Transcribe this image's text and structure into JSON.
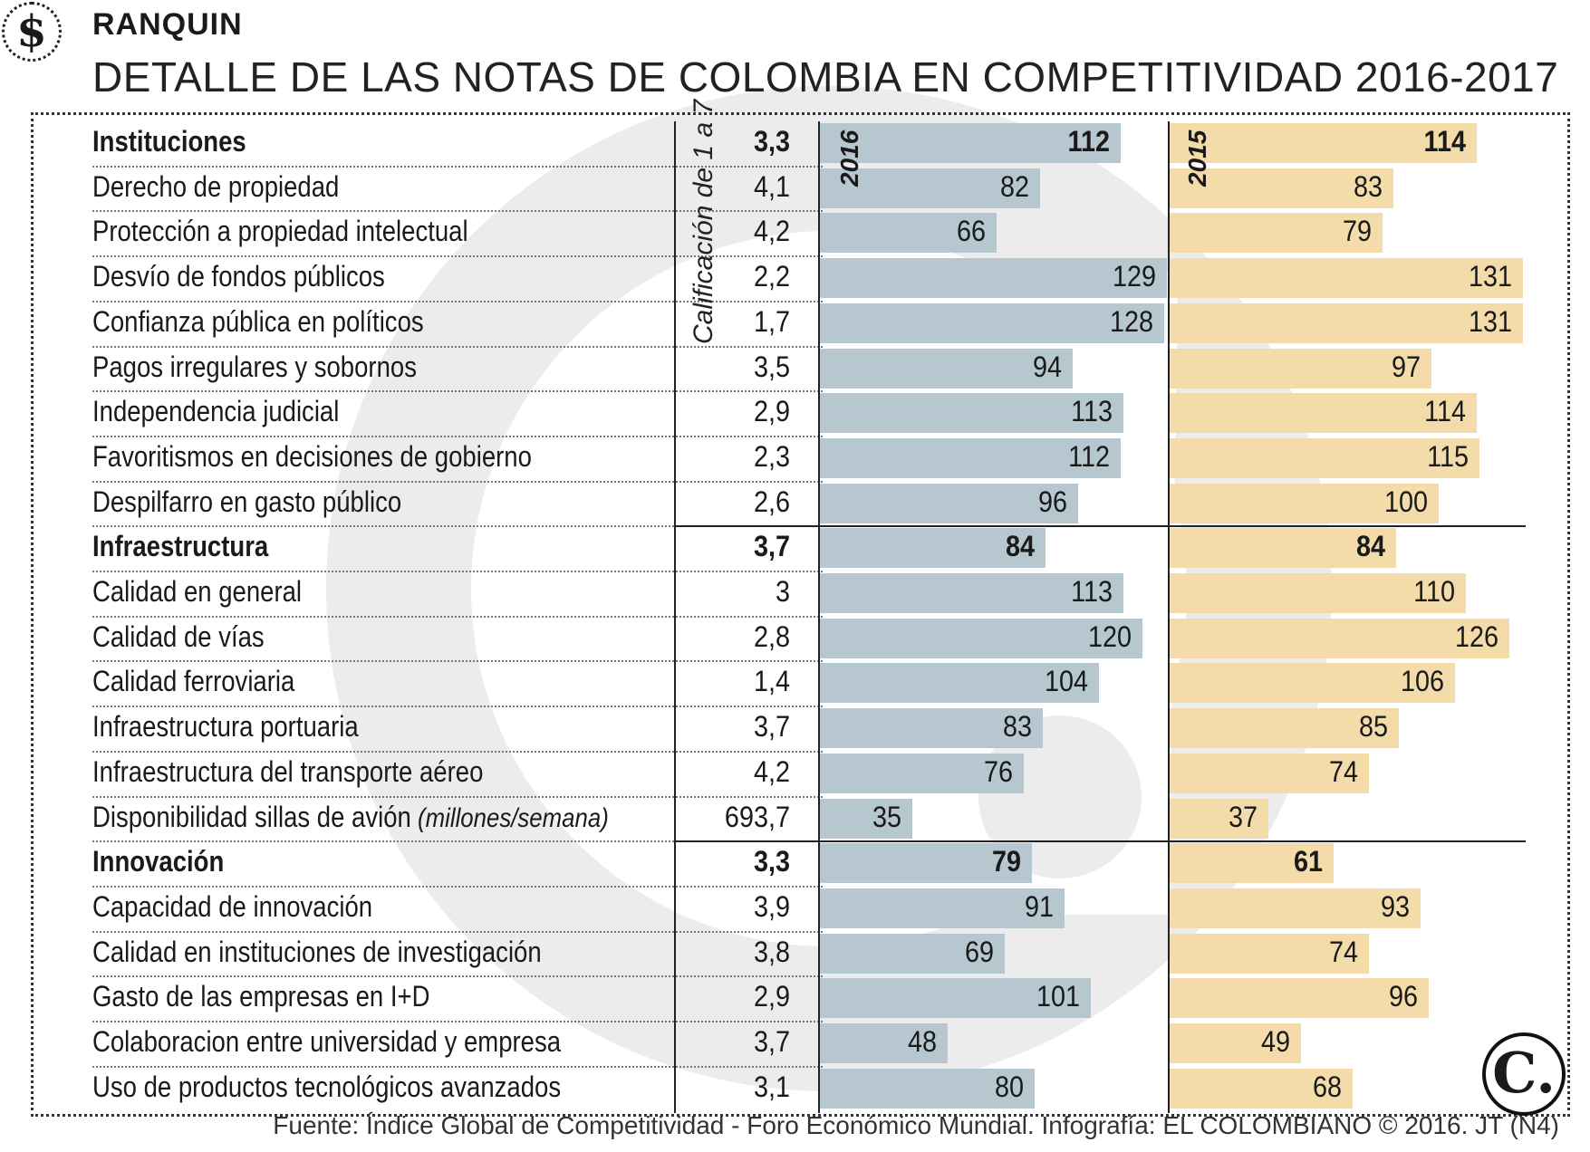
{
  "header": {
    "badge": "$",
    "section": "RANQUIN",
    "title": "DETALLE DE LAS NOTAS DE COLOMBIA EN COMPETITIVIDAD 2016-2017"
  },
  "scale_label": "Calificación de 1 a 7",
  "colors": {
    "bar_2016": "#b6c7cf",
    "bar_2015": "#f3dcaa",
    "watermark": "#e9eaea"
  },
  "chart_data": {
    "type": "bar",
    "title": "DETALLE DE LAS NOTAS DE COLOMBIA EN COMPETITIVIDAD 2016-2017",
    "xlabel": "",
    "ylabel": "",
    "value_max": 131,
    "series": [
      {
        "name": "2016",
        "key": "r2016"
      },
      {
        "name": "2015",
        "key": "r2015"
      }
    ],
    "rows": [
      {
        "label": "Instituciones",
        "bold": true,
        "score": "3,3",
        "r2016": 112,
        "r2015": 114
      },
      {
        "label": "Derecho de propiedad",
        "score": "4,1",
        "r2016": 82,
        "r2015": 83
      },
      {
        "label": "Protección a propiedad intelectual",
        "score": "4,2",
        "r2016": 66,
        "r2015": 79
      },
      {
        "label": "Desvío de fondos públicos",
        "score": "2,2",
        "r2016": 129,
        "r2015": 131
      },
      {
        "label": "Confianza pública en políticos",
        "score": "1,7",
        "r2016": 128,
        "r2015": 131
      },
      {
        "label": "Pagos irregulares y sobornos",
        "score": "3,5",
        "r2016": 94,
        "r2015": 97
      },
      {
        "label": "Independencia judicial",
        "score": "2,9",
        "r2016": 113,
        "r2015": 114
      },
      {
        "label": "Favoritismos en decisiones de gobierno",
        "score": "2,3",
        "r2016": 112,
        "r2015": 115
      },
      {
        "label": "Despilfarro en gasto público",
        "score": "2,6",
        "r2016": 96,
        "r2015": 100
      },
      {
        "label": "Infraestructura",
        "bold": true,
        "score": "3,7",
        "r2016": 84,
        "r2015": 84
      },
      {
        "label": "Calidad en general",
        "score": "3",
        "r2016": 113,
        "r2015": 110
      },
      {
        "label": "Calidad de vías",
        "score": "2,8",
        "r2016": 120,
        "r2015": 126
      },
      {
        "label": "Calidad ferroviaria",
        "score": "1,4",
        "r2016": 104,
        "r2015": 106
      },
      {
        "label": "Infraestructura portuaria",
        "score": "3,7",
        "r2016": 83,
        "r2015": 85
      },
      {
        "label": "Infraestructura del transporte aéreo",
        "score": "4,2",
        "r2016": 76,
        "r2015": 74
      },
      {
        "label": "Disponibilidad sillas de avión",
        "unit": "(millones/semana)",
        "score": "693,7",
        "r2016": 35,
        "r2015": 37
      },
      {
        "label": "Innovación",
        "bold": true,
        "score": "3,3",
        "r2016": 79,
        "r2015": 61
      },
      {
        "label": "Capacidad de innovación",
        "score": "3,9",
        "r2016": 91,
        "r2015": 93
      },
      {
        "label": "Calidad en instituciones de investigación",
        "score": "3,8",
        "r2016": 69,
        "r2015": 74
      },
      {
        "label": "Gasto de las empresas en I+D",
        "score": "2,9",
        "r2016": 101,
        "r2015": 96
      },
      {
        "label": "Colaboracion entre universidad y empresa",
        "score": "3,7",
        "r2016": 48,
        "r2015": 49
      },
      {
        "label": "Uso de productos tecnológicos avanzados",
        "score": "3,1",
        "r2016": 80,
        "r2015": 68
      }
    ]
  },
  "source": "Fuente: Índice Global de Competitividad - Foro Económico Mundial. Infografía: EL COLOMBIANO © 2016. JT (N4)",
  "logo": "C."
}
